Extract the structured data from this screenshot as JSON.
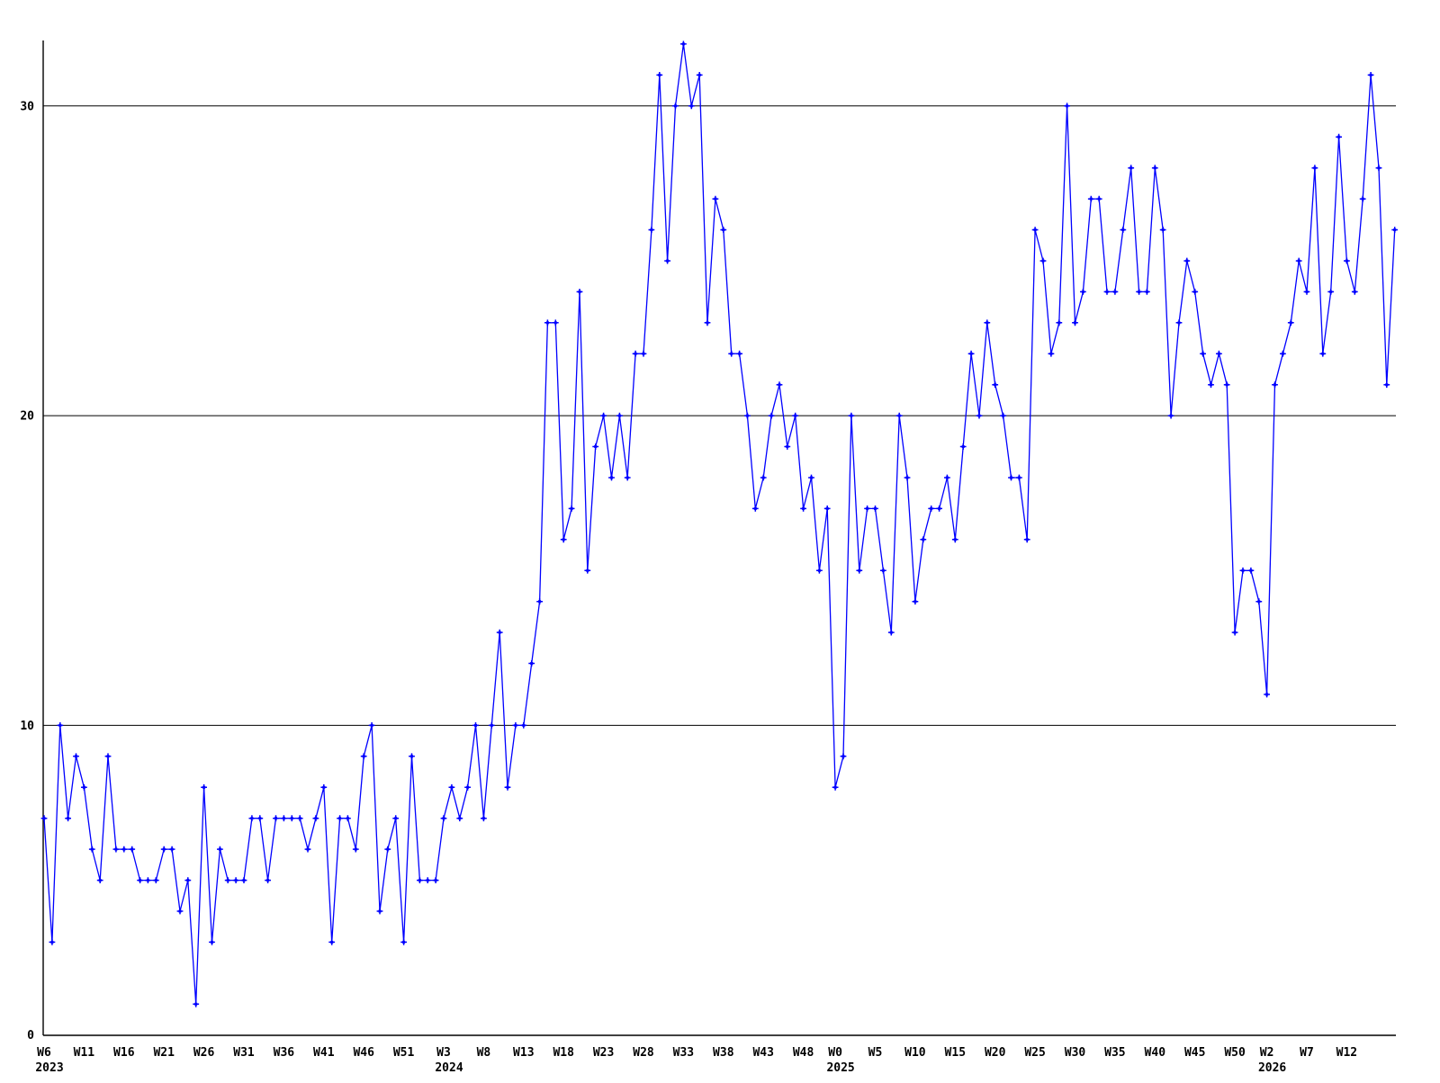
{
  "chart_data": {
    "type": "line",
    "title": "",
    "xlabel": "",
    "ylabel": "",
    "grid": true,
    "legend": "none",
    "line_color": "#0000ff",
    "axis_color": "#000000",
    "background_color": "#ffffff",
    "marker": "plus",
    "x_unit": "ISO week (weekly samples)",
    "x_range_description": "W6 2023 through ~W17 2026, one point per week",
    "y_axis": {
      "tick_labels": [
        "0",
        "10",
        "20",
        "30"
      ],
      "tick_values": [
        0,
        10,
        20,
        30
      ],
      "gridline_values": [
        10,
        20,
        30
      ],
      "ylim": [
        0,
        32.6
      ]
    },
    "x_axis": {
      "ticks": [
        {
          "label": "W6",
          "week": 0
        },
        {
          "label": "W11",
          "week": 5
        },
        {
          "label": "W16",
          "week": 10
        },
        {
          "label": "W21",
          "week": 15
        },
        {
          "label": "W26",
          "week": 20
        },
        {
          "label": "W31",
          "week": 25
        },
        {
          "label": "W36",
          "week": 30
        },
        {
          "label": "W41",
          "week": 35
        },
        {
          "label": "W46",
          "week": 40
        },
        {
          "label": "W51",
          "week": 45
        },
        {
          "label": "W3",
          "week": 50
        },
        {
          "label": "W8",
          "week": 55
        },
        {
          "label": "W13",
          "week": 60
        },
        {
          "label": "W18",
          "week": 65
        },
        {
          "label": "W23",
          "week": 70
        },
        {
          "label": "W28",
          "week": 75
        },
        {
          "label": "W33",
          "week": 80
        },
        {
          "label": "W38",
          "week": 85
        },
        {
          "label": "W43",
          "week": 90
        },
        {
          "label": "W48",
          "week": 95
        },
        {
          "label": "W0",
          "week": 99
        },
        {
          "label": "W5",
          "week": 104
        },
        {
          "label": "W10",
          "week": 109
        },
        {
          "label": "W15",
          "week": 114
        },
        {
          "label": "W20",
          "week": 119
        },
        {
          "label": "W25",
          "week": 124
        },
        {
          "label": "W30",
          "week": 129
        },
        {
          "label": "W35",
          "week": 134
        },
        {
          "label": "W40",
          "week": 139
        },
        {
          "label": "W45",
          "week": 144
        },
        {
          "label": "W50",
          "week": 149
        },
        {
          "label": "W2",
          "week": 153
        },
        {
          "label": "W7",
          "week": 158
        },
        {
          "label": "W12",
          "week": 163
        }
      ],
      "year_labels": [
        {
          "label": "2023",
          "week": 0
        },
        {
          "label": "2024",
          "week": 50
        },
        {
          "label": "2025",
          "week": 99
        },
        {
          "label": "2026",
          "week": 153
        }
      ]
    },
    "series": [
      {
        "name": "weekly-count",
        "start": "W6 2023",
        "values": [
          7,
          3,
          10,
          7,
          9,
          8,
          6,
          5,
          9,
          6,
          6,
          6,
          5,
          5,
          5,
          6,
          6,
          4,
          5,
          1,
          8,
          3,
          6,
          5,
          5,
          5,
          7,
          7,
          5,
          7,
          7,
          7,
          7,
          6,
          7,
          8,
          3,
          7,
          7,
          6,
          9,
          10,
          4,
          6,
          7,
          3,
          9,
          5,
          5,
          5,
          7,
          8,
          7,
          8,
          10,
          7,
          10,
          13,
          8,
          10,
          10,
          12,
          14,
          23,
          23,
          16,
          17,
          24,
          15,
          19,
          20,
          18,
          20,
          18,
          22,
          22,
          26,
          31,
          25,
          30,
          32,
          30,
          31,
          23,
          27,
          26,
          22,
          22,
          20,
          17,
          18,
          20,
          21,
          19,
          20,
          17,
          18,
          15,
          17,
          8,
          9,
          20,
          15,
          17,
          17,
          15,
          13,
          20,
          18,
          14,
          16,
          17,
          17,
          18,
          16,
          19,
          22,
          20,
          23,
          21,
          20,
          18,
          18,
          16,
          26,
          25,
          22,
          23,
          30,
          23,
          24,
          27,
          27,
          24,
          24,
          26,
          28,
          24,
          24,
          28,
          26,
          20,
          23,
          25,
          24,
          22,
          21,
          22,
          21,
          13,
          15,
          15,
          14,
          11,
          21,
          22,
          23,
          25,
          24,
          28,
          22,
          24,
          29,
          25,
          24,
          27,
          31,
          28,
          21,
          26
        ]
      }
    ]
  }
}
